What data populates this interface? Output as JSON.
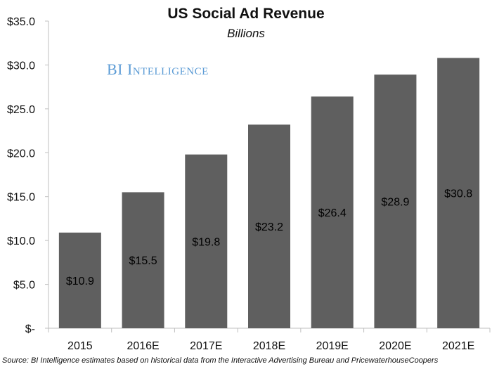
{
  "chart_data": {
    "type": "bar",
    "title": "US Social Ad Revenue",
    "subtitle": "Billions",
    "categories": [
      "2015",
      "2016E",
      "2017E",
      "2018E",
      "2019E",
      "2020E",
      "2021E"
    ],
    "values": [
      10.9,
      15.5,
      19.8,
      23.2,
      26.4,
      28.9,
      30.8
    ],
    "data_labels": [
      "$10.9",
      "$15.5",
      "$19.8",
      "$23.2",
      "$26.4",
      "$28.9",
      "$30.8"
    ],
    "y_ticks": [
      0,
      5,
      10,
      15,
      20,
      25,
      30,
      35
    ],
    "y_tick_labels": [
      "$-",
      "$5.0",
      "$10.0",
      "$15.0",
      "$20.0",
      "$25.0",
      "$30.0",
      "$35.0"
    ],
    "ylim": [
      0,
      35
    ],
    "xlabel": "",
    "ylabel": "",
    "grid": false,
    "legend": "none",
    "bar_color": "#5f5f5f",
    "label_color": "#000000"
  },
  "branding": "BI Intelligence",
  "brand_color": "#5b9bd5",
  "source": "Source: BI Intelligence estimates based on historical data from the Interactive Advertising Bureau and PricewaterhouseCoopers"
}
